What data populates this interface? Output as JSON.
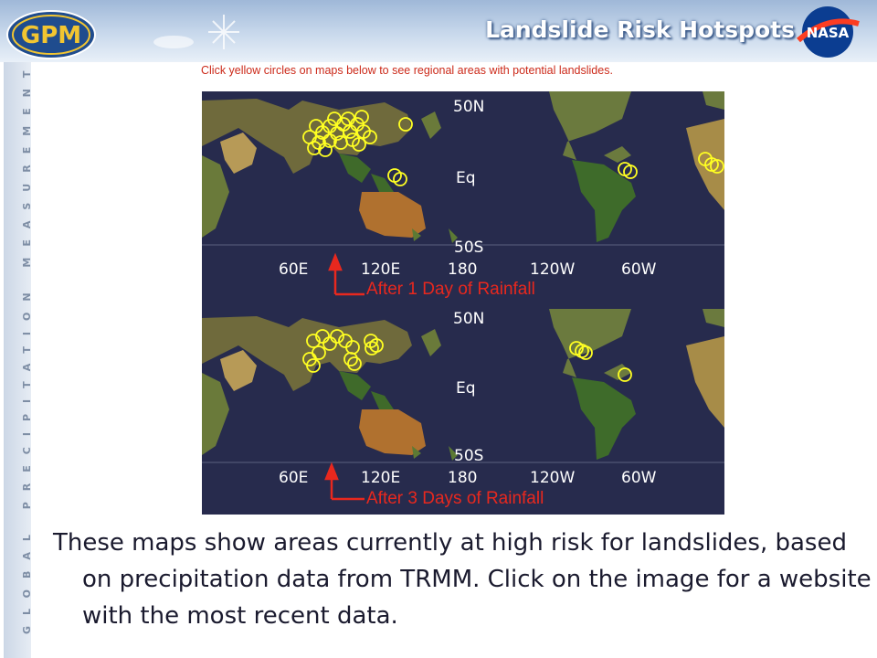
{
  "header": {
    "title": "Landslide Risk Hotspots"
  },
  "sidebar": {
    "text": "GLOBAL PRECIPITATION MEASUREMENT"
  },
  "logos": {
    "gpm": "GPM",
    "nasa": "NASA"
  },
  "instruction": "Click yellow circles on maps below to see regional areas with potential landslides.",
  "maps": {
    "lat_labels": [
      "50N",
      "Eq",
      "50S"
    ],
    "lon_labels": [
      "60E",
      "120E",
      "180",
      "120W",
      "60W"
    ],
    "panel1_caption": "After 1 Day of Rainfall",
    "panel2_caption": "After 3 Days of Rainfall"
  },
  "body_text": "These maps show areas currently at high risk for landslides, based on precipitation data from TRMM.  Click on the image for a website with the most recent data.",
  "colors": {
    "accent_red": "#e8281e",
    "hotspot_yellow": "#ffff22",
    "ocean": "#272b4d"
  }
}
